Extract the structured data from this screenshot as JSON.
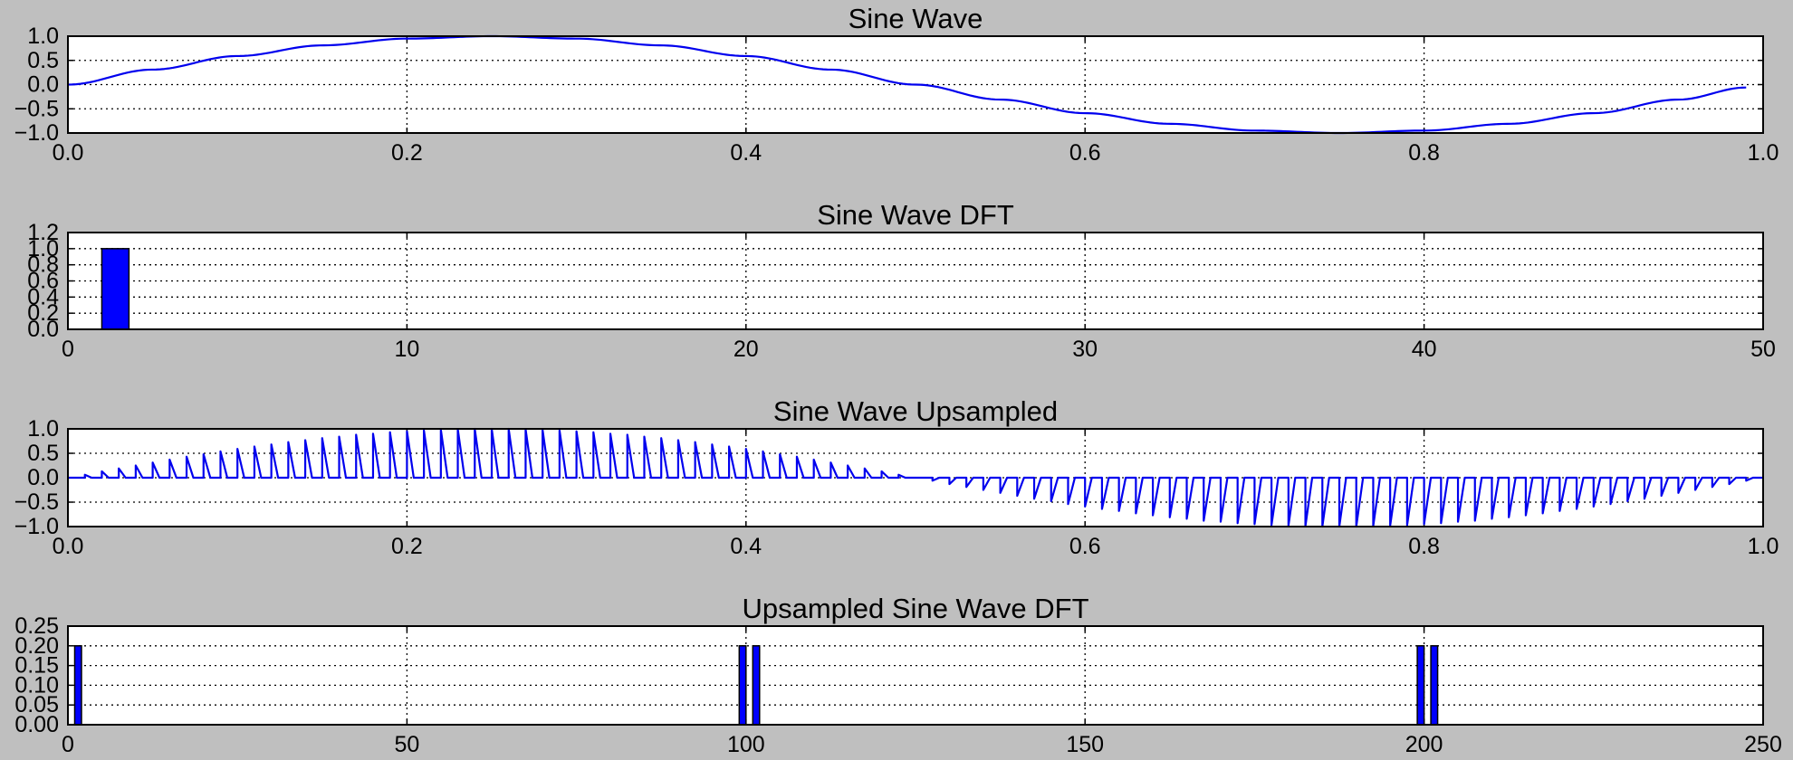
{
  "colors": {
    "background": "#bfbfbf",
    "axes": "#ffffff",
    "series": "#0000ff"
  },
  "chart_data": [
    {
      "type": "line",
      "title": "Sine Wave",
      "xlim": [
        0,
        1
      ],
      "ylim": [
        -1,
        1
      ],
      "xticks": [
        "0.0",
        "0.2",
        "0.4",
        "0.6",
        "0.8",
        "1.0"
      ],
      "yticks": [
        "1.0",
        "0.5",
        "0.0",
        "−0.5",
        "−1.0"
      ],
      "grid": true,
      "series": [
        {
          "x": [
            0.0,
            0.05,
            0.1,
            0.15,
            0.2,
            0.25,
            0.3,
            0.35,
            0.4,
            0.45,
            0.5,
            0.55,
            0.6,
            0.65,
            0.7,
            0.75,
            0.8,
            0.85,
            0.9,
            0.95,
            0.99
          ],
          "y": [
            0.0,
            0.31,
            0.59,
            0.81,
            0.95,
            1.0,
            0.95,
            0.81,
            0.59,
            0.31,
            0.0,
            -0.31,
            -0.59,
            -0.81,
            -0.95,
            -1.0,
            -0.95,
            -0.81,
            -0.59,
            -0.31,
            -0.06
          ]
        }
      ]
    },
    {
      "type": "bar",
      "title": "Sine Wave DFT",
      "xlim": [
        0,
        50
      ],
      "ylim": [
        0,
        1.2
      ],
      "xticks": [
        "0",
        "10",
        "20",
        "30",
        "40",
        "50"
      ],
      "yticks": [
        "1.2",
        "1.0",
        "0.8",
        "0.6",
        "0.4",
        "0.2",
        "0.0"
      ],
      "grid": true,
      "bars": [
        {
          "x": 1,
          "value": 1.0
        }
      ]
    },
    {
      "type": "line",
      "title": "Sine Wave Upsampled",
      "xlim": [
        0,
        1
      ],
      "ylim": [
        -1,
        1
      ],
      "xticks": [
        "0.0",
        "0.2",
        "0.4",
        "0.6",
        "0.8",
        "1.0"
      ],
      "yticks": [
        "1.0",
        "0.5",
        "0.0",
        "−0.5",
        "−1.0"
      ],
      "grid": true,
      "series": [
        {
          "name": "",
          "pulse_times": [
            0.0,
            0.01,
            0.02,
            0.03,
            0.04,
            0.05,
            0.06,
            0.07,
            0.08,
            0.09,
            0.1,
            0.11,
            0.12,
            0.13,
            0.14,
            0.15,
            0.16,
            0.17,
            0.18,
            0.19,
            0.2,
            0.21,
            0.22,
            0.23,
            0.24,
            0.25,
            0.26,
            0.27,
            0.28,
            0.29,
            0.3,
            0.31,
            0.32,
            0.33,
            0.34,
            0.35,
            0.36,
            0.37,
            0.38,
            0.39,
            0.4,
            0.41,
            0.42,
            0.43,
            0.44,
            0.45,
            0.46,
            0.47,
            0.48,
            0.49,
            0.5,
            0.51,
            0.52,
            0.53,
            0.54,
            0.55,
            0.56,
            0.57,
            0.58,
            0.59,
            0.6,
            0.61,
            0.62,
            0.63,
            0.64,
            0.65,
            0.66,
            0.67,
            0.68,
            0.69,
            0.7,
            0.71,
            0.72,
            0.73,
            0.74,
            0.75,
            0.76,
            0.77,
            0.78,
            0.79,
            0.8,
            0.81,
            0.82,
            0.83,
            0.84,
            0.85,
            0.86,
            0.87,
            0.88,
            0.89,
            0.9,
            0.91,
            0.92,
            0.93,
            0.94,
            0.95,
            0.96,
            0.97,
            0.98,
            0.99
          ],
          "pulse_values": [
            0.0,
            0.06,
            0.13,
            0.19,
            0.25,
            0.31,
            0.37,
            0.43,
            0.48,
            0.54,
            0.59,
            0.64,
            0.68,
            0.73,
            0.77,
            0.81,
            0.84,
            0.88,
            0.9,
            0.93,
            0.95,
            0.97,
            0.98,
            0.99,
            1.0,
            1.0,
            1.0,
            0.99,
            0.98,
            0.97,
            0.95,
            0.93,
            0.9,
            0.88,
            0.84,
            0.81,
            0.77,
            0.73,
            0.68,
            0.64,
            0.59,
            0.54,
            0.48,
            0.43,
            0.37,
            0.31,
            0.25,
            0.19,
            0.13,
            0.06,
            0.0,
            -0.06,
            -0.13,
            -0.19,
            -0.25,
            -0.31,
            -0.37,
            -0.43,
            -0.48,
            -0.54,
            -0.59,
            -0.64,
            -0.68,
            -0.73,
            -0.77,
            -0.81,
            -0.84,
            -0.88,
            -0.9,
            -0.93,
            -0.95,
            -0.97,
            -0.98,
            -0.99,
            -1.0,
            -1.0,
            -1.0,
            -0.99,
            -0.98,
            -0.97,
            -0.95,
            -0.93,
            -0.9,
            -0.88,
            -0.84,
            -0.81,
            -0.77,
            -0.73,
            -0.68,
            -0.64,
            -0.59,
            -0.54,
            -0.48,
            -0.43,
            -0.37,
            -0.31,
            -0.25,
            -0.19,
            -0.13,
            -0.06
          ]
        }
      ]
    },
    {
      "type": "bar",
      "title": "Upsampled Sine Wave DFT",
      "xlim": [
        0,
        250
      ],
      "ylim": [
        0,
        0.25
      ],
      "xticks": [
        "0",
        "50",
        "100",
        "150",
        "200",
        "250"
      ],
      "yticks": [
        "0.25",
        "0.20",
        "0.15",
        "0.10",
        "0.05",
        "0.00"
      ],
      "grid": true,
      "bars": [
        {
          "x": 1,
          "value": 0.2
        },
        {
          "x": 99,
          "value": 0.2
        },
        {
          "x": 101,
          "value": 0.2
        },
        {
          "x": 199,
          "value": 0.2
        },
        {
          "x": 201,
          "value": 0.2
        }
      ]
    }
  ]
}
